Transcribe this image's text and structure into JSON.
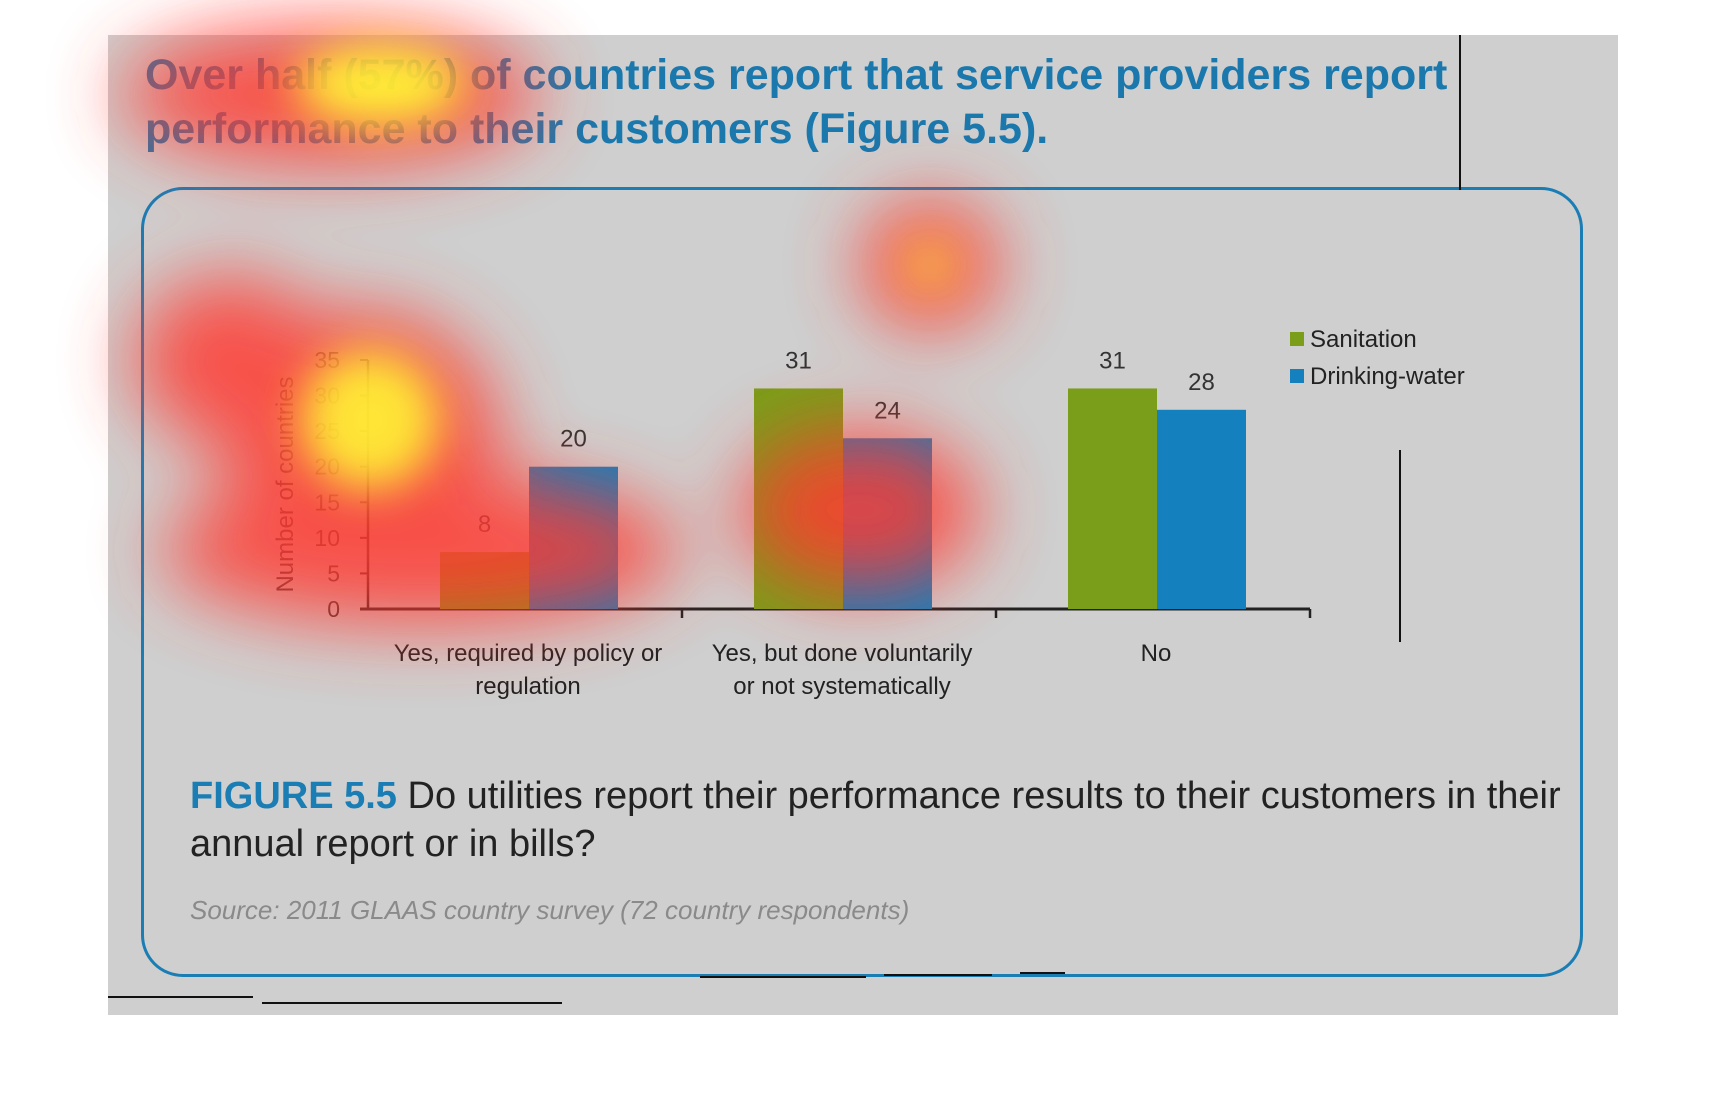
{
  "headline": "Over half (57%) of countries report that service providers report performance to their customers (Figure 5.5).",
  "caption": {
    "label": "FIGURE 5.5",
    "text": "Do utilities report their performance results to their customers in their annual report or in bills?"
  },
  "source": "Source: 2011 GLAAS country survey (72 country respondents)",
  "colors": {
    "sanitation": "#7a9e1a",
    "drinking_water": "#1480bd",
    "accent": "#1a7db4",
    "panel": "#cfcfcf"
  },
  "chart_data": {
    "type": "bar",
    "title": "",
    "xlabel": "",
    "ylabel": "Number of countries",
    "ylim": [
      0,
      35
    ],
    "yticks": [
      0,
      5,
      10,
      15,
      20,
      25,
      30,
      35
    ],
    "categories": [
      [
        "Yes, required by policy or",
        "regulation"
      ],
      [
        "Yes, but done voluntarily",
        "or not systematically"
      ],
      [
        "No"
      ]
    ],
    "series": [
      {
        "name": "Sanitation",
        "values": [
          8,
          31,
          31
        ]
      },
      {
        "name": "Drinking-water",
        "values": [
          20,
          24,
          28
        ]
      }
    ],
    "data_labels": true,
    "legend": "top-right",
    "grid": false
  }
}
